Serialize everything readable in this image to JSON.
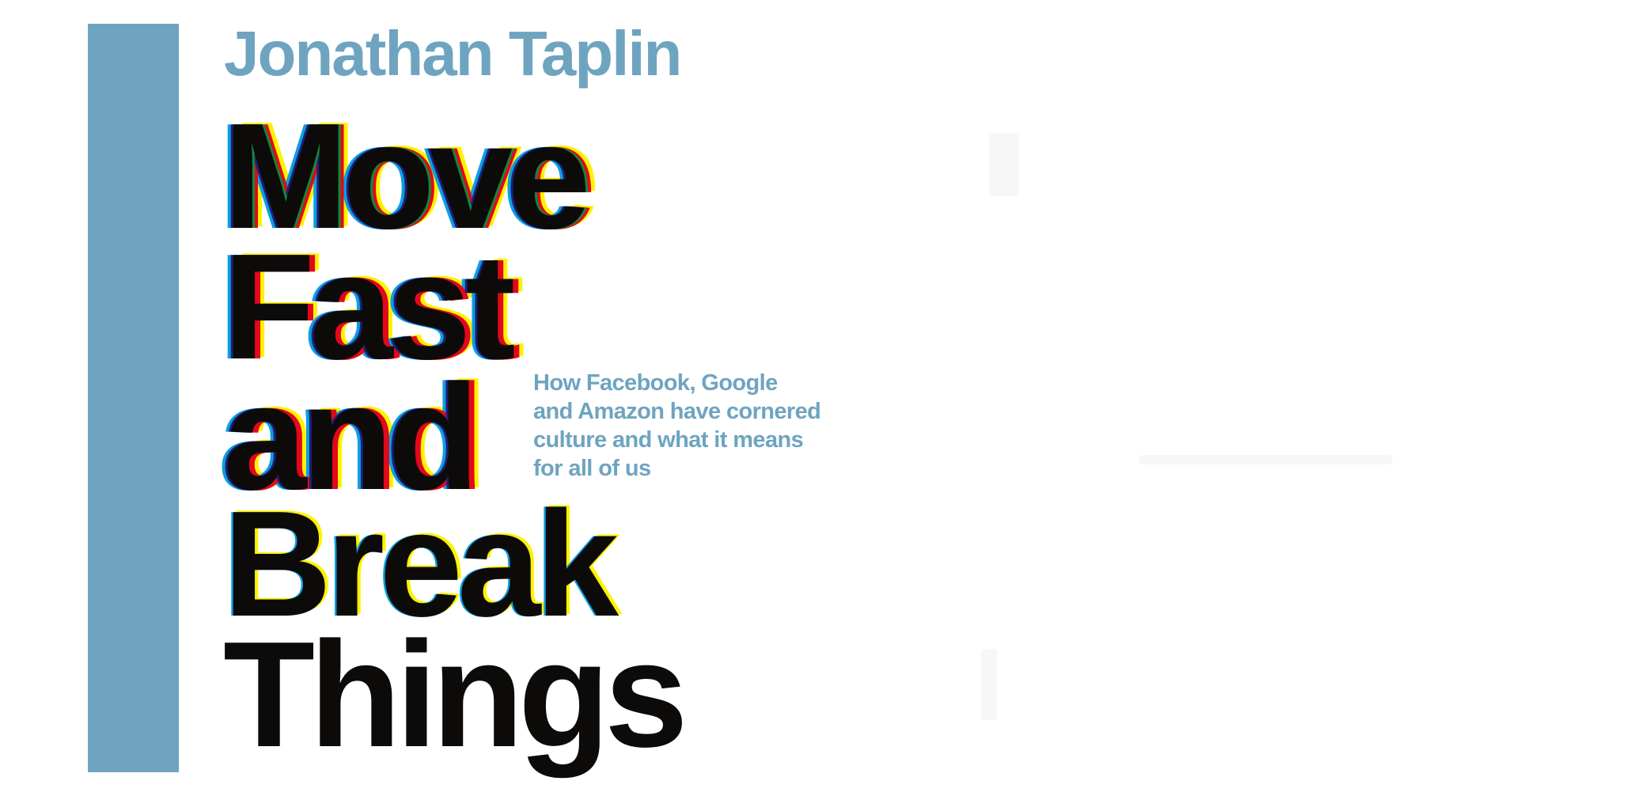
{
  "cover": {
    "author": "Jonathan Taplin",
    "title_lines": [
      "Move",
      "Fast",
      "and",
      "Break",
      "Things"
    ],
    "subtitle_lines": [
      "How Facebook, Google",
      "and Amazon have cornered",
      "culture and what it means",
      "for all of us"
    ]
  },
  "colors": {
    "accent_blue": "#6ea4c0",
    "title_black": "#0c0b0a",
    "overprint_cyan": "#0b9fe0",
    "overprint_yellow": "#fff200",
    "overprint_red": "#e2081a",
    "overprint_navy": "#1d1f7a",
    "overprint_green": "#0e8a3a"
  }
}
